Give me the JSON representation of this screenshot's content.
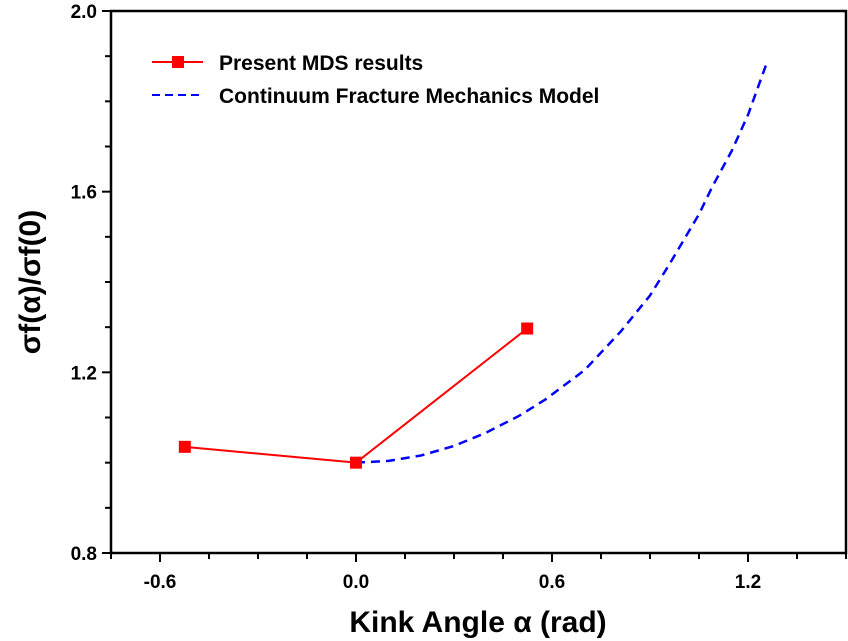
{
  "chart_data": {
    "type": "line",
    "title": "",
    "xlabel": "Kink Angle α (rad)",
    "ylabel": "σf(α)/σf(0)",
    "xlim": [
      -0.75,
      1.5
    ],
    "ylim": [
      0.8,
      2.0
    ],
    "x_ticks": [
      -0.6,
      0.0,
      0.6,
      1.2
    ],
    "x_tick_labels": [
      "-0.6",
      "0.0",
      "0.6",
      "1.2"
    ],
    "x_minor_step": 0.15,
    "y_ticks": [
      0.8,
      1.2,
      1.6,
      2.0
    ],
    "y_tick_labels": [
      "0.8",
      "1.2",
      "1.6",
      "2.0"
    ],
    "y_minor_step": 0.1,
    "grid": false,
    "legend_position": "top-left",
    "series": [
      {
        "name": "Present MDS results",
        "style": "solid-line-square-markers",
        "color": "#ff0000",
        "x": [
          -0.524,
          0.0,
          0.524
        ],
        "y": [
          1.035,
          1.0,
          1.297
        ]
      },
      {
        "name": "Continuum Fracture Mechanics Model",
        "style": "dashed-line",
        "color": "#0000ff",
        "x": [
          0.0,
          0.1,
          0.2,
          0.3,
          0.4,
          0.5,
          0.58,
          0.7,
          0.81,
          0.9,
          0.96,
          1.05,
          1.09,
          1.15,
          1.2,
          1.255
        ],
        "y": [
          1.0,
          1.004,
          1.016,
          1.037,
          1.067,
          1.104,
          1.14,
          1.205,
          1.29,
          1.37,
          1.44,
          1.55,
          1.61,
          1.69,
          1.77,
          1.88
        ]
      }
    ]
  }
}
